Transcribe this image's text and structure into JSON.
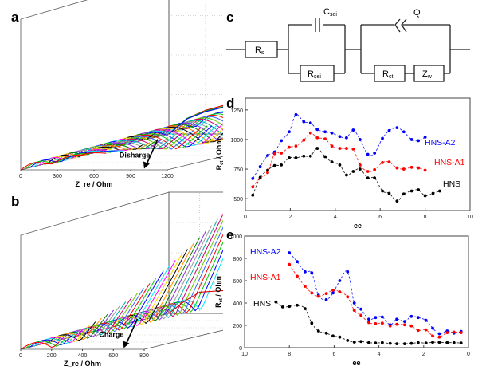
{
  "panels": {
    "a": "a",
    "b": "b",
    "c": "c",
    "d": "d",
    "e": "e"
  },
  "circuit": {
    "elements": [
      "R_s",
      "C_sei",
      "R_sei",
      "Q",
      "R_ct",
      "Z_w"
    ],
    "labels": {
      "rs_main": "R",
      "rs_sub": "s",
      "csei_main": "C",
      "csei_sub": "sei",
      "rsei_main": "R",
      "rsei_sub": "sei",
      "q": "Q",
      "rct_main": "R",
      "rct_sub": "ct",
      "zw_main": "Z",
      "zw_sub": "w"
    }
  },
  "chart_data": [
    {
      "id": "a",
      "type": "line",
      "subtype": "3d-waterfall-nyquist",
      "xlabel": "Z_re / Ohm",
      "ylabel": "-Z_im / Ohm",
      "x_ticks": [
        "0",
        "300",
        "600",
        "900",
        "1200"
      ],
      "y_ticks": [
        "0",
        "300",
        "600",
        "900",
        "1200"
      ],
      "xlim": [
        0,
        1200
      ],
      "ylim": [
        0,
        1200
      ],
      "annotation": "Disharge",
      "series_colors": [
        "#ff0000",
        "#00cc00",
        "#0000ff",
        "#00ffff",
        "#ff00ff",
        "#ffff00",
        "#000000",
        "#ff8800",
        "#008800",
        "#8800ff",
        "#888888",
        "#00aaaa"
      ],
      "front_curves": [
        {
          "name": "red",
          "color": "#e00000",
          "points": [
            [
              0,
              0
            ],
            [
              150,
              120
            ],
            [
              300,
              180
            ],
            [
              500,
              230
            ],
            [
              700,
              260
            ],
            [
              900,
              330
            ],
            [
              1000,
              480
            ],
            [
              1100,
              700
            ],
            [
              1200,
              950
            ]
          ]
        },
        {
          "name": "green",
          "color": "#00cc00",
          "points": [
            [
              0,
              0
            ],
            [
              150,
              120
            ],
            [
              300,
              175
            ],
            [
              500,
              220
            ],
            [
              700,
              245
            ],
            [
              900,
              300
            ],
            [
              1000,
              390
            ],
            [
              1100,
              490
            ],
            [
              1200,
              590
            ]
          ]
        },
        {
          "name": "blue",
          "color": "#0000ee",
          "points": [
            [
              0,
              0
            ],
            [
              150,
              115
            ],
            [
              300,
              170
            ],
            [
              500,
              215
            ],
            [
              700,
              235
            ],
            [
              900,
              280
            ],
            [
              1000,
              320
            ],
            [
              1100,
              360
            ],
            [
              1200,
              390
            ]
          ]
        }
      ]
    },
    {
      "id": "b",
      "type": "line",
      "subtype": "3d-waterfall-nyquist",
      "xlabel": "Z_re / Ohm",
      "ylabel": "-Z_im / Ohm",
      "x_ticks": [
        "0",
        "200",
        "400",
        "600",
        "800"
      ],
      "y_ticks": [
        "0",
        "200",
        "400",
        "600",
        "800"
      ],
      "xlim": [
        0,
        800
      ],
      "ylim": [
        0,
        800
      ],
      "annotation": "Charge",
      "front_curves": [
        {
          "name": "red",
          "color": "#e00000",
          "points": [
            [
              0,
              0
            ],
            [
              100,
              80
            ],
            [
              200,
              140
            ],
            [
              350,
              150
            ],
            [
              500,
              130
            ],
            [
              600,
              140
            ],
            [
              700,
              200
            ],
            [
              800,
              330
            ]
          ]
        }
      ]
    },
    {
      "id": "d",
      "type": "scatter",
      "xlabel": "ee",
      "ylabel": "R_ct / Ohm",
      "xlim": [
        0,
        10
      ],
      "ylim": [
        400,
        1350
      ],
      "x_ticks": [
        0,
        2,
        4,
        6,
        8,
        10
      ],
      "y_ticks": [
        500,
        750,
        1000,
        1250
      ],
      "legend_placement": "right",
      "series": [
        {
          "name": "HNS-A2",
          "color": "#0000ff",
          "x": [
            0.33,
            0.66,
            0.99,
            1.3,
            1.6,
            1.95,
            2.25,
            2.6,
            2.9,
            3.2,
            3.55,
            3.85,
            4.2,
            4.5,
            4.8,
            5.1,
            5.45,
            5.75,
            6.1,
            6.4,
            6.75,
            7.05,
            7.4,
            7.7,
            8.0
          ],
          "y": [
            670,
            770,
            865,
            895,
            990,
            1065,
            1210,
            1150,
            1140,
            1085,
            1065,
            1055,
            1025,
            1015,
            1080,
            1000,
            875,
            885,
            1010,
            1075,
            1100,
            1065,
            1000,
            990,
            1020
          ]
        },
        {
          "name": "HNS-A1",
          "color": "#ff0000",
          "x": [
            0.33,
            0.66,
            0.99,
            1.3,
            1.6,
            1.95,
            2.25,
            2.6,
            2.9,
            3.2,
            3.55,
            3.85,
            4.2,
            4.5,
            4.8,
            5.1,
            5.45,
            5.75,
            6.1,
            6.4,
            6.75,
            7.05,
            7.4,
            7.7,
            8.0
          ],
          "y": [
            600,
            675,
            720,
            880,
            885,
            935,
            945,
            995,
            1055,
            1015,
            1005,
            945,
            925,
            925,
            920,
            785,
            730,
            745,
            805,
            810,
            760,
            750,
            765,
            760,
            740
          ]
        },
        {
          "name": "HNS",
          "color": "#000000",
          "x": [
            0.33,
            0.66,
            0.99,
            1.3,
            1.6,
            1.95,
            2.25,
            2.6,
            2.9,
            3.2,
            3.55,
            3.85,
            4.2,
            4.5,
            4.8,
            5.1,
            5.45,
            5.75,
            6.1,
            6.4,
            6.75,
            7.05,
            7.4,
            7.7,
            8.0,
            8.35,
            8.65
          ],
          "y": [
            530,
            680,
            740,
            780,
            785,
            845,
            845,
            860,
            860,
            925,
            855,
            810,
            785,
            700,
            730,
            750,
            675,
            675,
            565,
            545,
            480,
            540,
            565,
            575,
            525,
            545,
            565
          ]
        }
      ]
    },
    {
      "id": "e",
      "type": "scatter",
      "xlabel": "ee",
      "ylabel": "R_ct / Ohm",
      "xlim": [
        10,
        0
      ],
      "ylim": [
        0,
        1000
      ],
      "x_ticks": [
        10,
        8,
        6,
        4,
        2,
        0
      ],
      "y_ticks": [
        0,
        200,
        400,
        600,
        800,
        1000
      ],
      "legend_placement": "top-left",
      "series": [
        {
          "name": "HNS-A2",
          "color": "#0000ff",
          "x": [
            8.0,
            7.65,
            7.3,
            7.0,
            6.7,
            6.35,
            6.05,
            5.75,
            5.4,
            5.1,
            4.8,
            4.45,
            4.15,
            3.85,
            3.5,
            3.2,
            2.85,
            2.55,
            2.25,
            1.9,
            1.6,
            1.3,
            0.95,
            0.65,
            0.33
          ],
          "y": [
            850,
            770,
            680,
            670,
            470,
            430,
            490,
            600,
            680,
            400,
            345,
            255,
            270,
            275,
            205,
            255,
            235,
            280,
            270,
            245,
            175,
            125,
            150,
            130,
            145
          ]
        },
        {
          "name": "HNS-A1",
          "color": "#ff0000",
          "x": [
            8.0,
            7.65,
            7.3,
            7.0,
            6.7,
            6.35,
            6.05,
            5.75,
            5.4,
            5.1,
            4.8,
            4.45,
            4.15,
            3.85,
            3.5,
            3.2,
            2.85,
            2.55,
            2.25,
            1.9,
            1.6,
            1.3,
            0.95,
            0.65,
            0.33
          ],
          "y": [
            745,
            640,
            550,
            490,
            460,
            485,
            515,
            500,
            455,
            335,
            290,
            225,
            215,
            220,
            195,
            210,
            205,
            195,
            155,
            160,
            105,
            95,
            135,
            140,
            135
          ]
        },
        {
          "name": "HNS",
          "color": "#000000",
          "x": [
            8.6,
            8.3,
            8.0,
            7.65,
            7.3,
            7.0,
            6.7,
            6.35,
            6.05,
            5.75,
            5.4,
            5.1,
            4.8,
            4.45,
            4.15,
            3.85,
            3.5,
            3.2,
            2.85,
            2.55,
            2.25,
            1.9,
            1.6,
            1.3,
            0.95,
            0.65,
            0.33
          ],
          "y": [
            410,
            365,
            370,
            380,
            350,
            220,
            150,
            130,
            105,
            95,
            65,
            50,
            55,
            45,
            42,
            45,
            38,
            35,
            35,
            38,
            45,
            42,
            48,
            48,
            45,
            45,
            42
          ]
        }
      ]
    }
  ]
}
